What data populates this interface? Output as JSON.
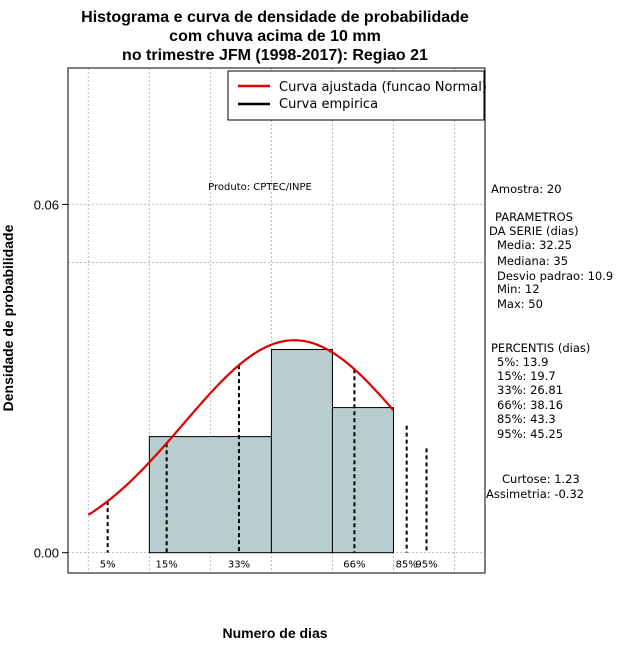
{
  "chart_data": {
    "type": "bar",
    "title_lines": [
      "Histograma e curva de densidade de probabilidade",
      "com chuva acima de 10 mm",
      "no trimestre JFM (1998-2017): Regiao 21"
    ],
    "xlabel": "Numero de dias",
    "ylabel": "Densidade de probabilidade",
    "xlim": [
      10,
      51
    ],
    "ylim": [
      -0.0035,
      0.0835
    ],
    "y_ticks": [
      0.0,
      0.06
    ],
    "y_tick_labels": [
      "0.00",
      "0.06"
    ],
    "grid": true,
    "grid_x": [
      12,
      18,
      24,
      30,
      36,
      42,
      48
    ],
    "grid_y": [
      0.0,
      0.06,
      0.05
    ],
    "bins": [
      {
        "start": 18,
        "end": 30,
        "density": 0.02
      },
      {
        "start": 30,
        "end": 36,
        "density": 0.035
      },
      {
        "start": 36,
        "end": 42,
        "density": 0.025
      }
    ],
    "bar_color": "#b8cdcd",
    "series": [
      {
        "name": "Curva ajustada (funcao Normal)",
        "color": "#dd0000",
        "dist": "normal",
        "mean": 32.25,
        "sd": 10.9,
        "x_range": [
          12,
          42
        ]
      },
      {
        "name": "Curva empirica",
        "color": "#000000"
      }
    ],
    "legend_position": "top-right",
    "percentiles": [
      {
        "label": "5%",
        "x": 13.9
      },
      {
        "label": "15%",
        "x": 19.7
      },
      {
        "label": "33%",
        "x": 26.81
      },
      {
        "label": "66%",
        "x": 38.16
      },
      {
        "label": "85%",
        "x": 43.3
      },
      {
        "label": "95%",
        "x": 45.25
      }
    ],
    "product_note": "Produto: CPTEC/INPE",
    "side_panel": [
      "Amostra: 20",
      "PARAMETROS",
      "DA SERIE (dias)",
      "Media: 32.25",
      "Mediana: 35",
      "Desvio padrao: 10.9",
      "Min: 12",
      "Max: 50",
      "PERCENTIS (dias)",
      "5%: 13.9",
      "15%: 19.7",
      "33%: 26.81",
      "66%: 38.16",
      "85%: 43.3",
      "95%: 45.25",
      "Curtose: 1.23",
      "Assimetria: -0.32"
    ]
  }
}
